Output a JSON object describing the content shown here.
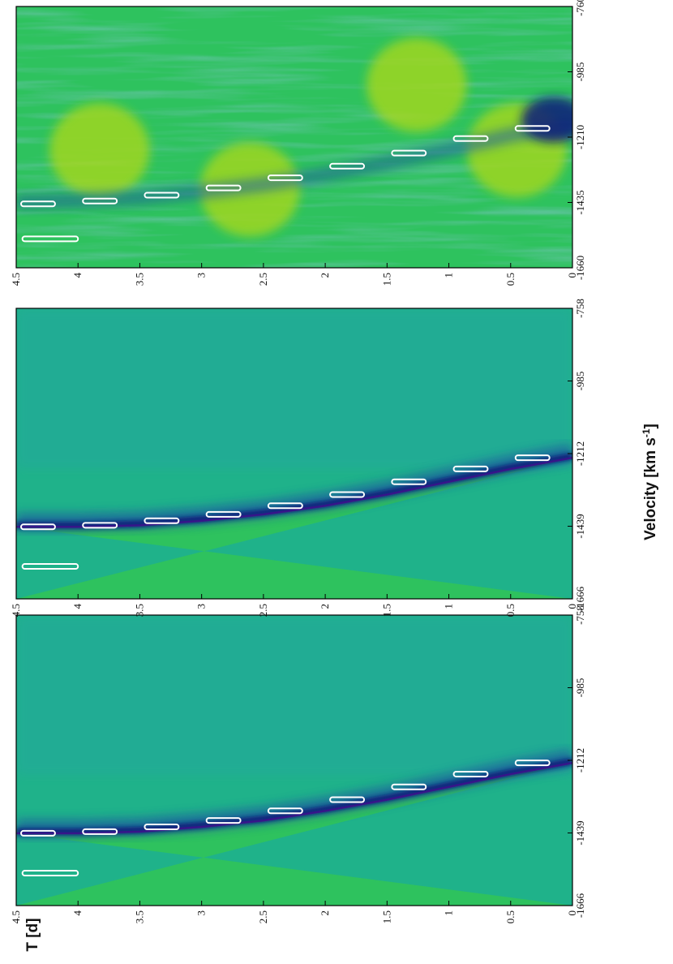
{
  "chart_data": {
    "type": "heatmap",
    "orientation": "rotated 90 degrees counter-clockwise",
    "shared_axis_titles": {
      "time_axis": "T [d]",
      "velocity_axis": "Velocity [km s-1]",
      "velocity_axis_unit_base": "Velocity [km s",
      "velocity_axis_unit_exponent": "-1",
      "velocity_axis_close": "]"
    },
    "colors": {
      "light": "#a6d81c",
      "mid_green": "#2ec25e",
      "teal": "#1fb28a",
      "cyan": "#27a3a8",
      "blue": "#1b5f9e",
      "navy": "#101e7a",
      "purple": "#400e8c",
      "contour": "#ffffff"
    },
    "panels": [
      {
        "name": "panel-1",
        "time_range": [
          0,
          4.5
        ],
        "time_ticks": [
          "0",
          "0.5",
          "1",
          "1.5",
          "2",
          "2.5",
          "3",
          "3.5",
          "4",
          "4.5"
        ],
        "velocity_range": [
          -1666,
          -758
        ],
        "velocity_ticks": [
          "-1666",
          "-1439",
          "-1212",
          "-985",
          "-758"
        ],
        "background": "teal",
        "absorption_trough": [
          {
            "t": 0.0,
            "v": -1220
          },
          {
            "t": 0.5,
            "v": -1255
          },
          {
            "t": 1.0,
            "v": -1295
          },
          {
            "t": 1.5,
            "v": -1335
          },
          {
            "t": 2.0,
            "v": -1370
          },
          {
            "t": 2.5,
            "v": -1400
          },
          {
            "t": 3.0,
            "v": -1420
          },
          {
            "t": 3.5,
            "v": -1435
          },
          {
            "t": 4.0,
            "v": -1440
          },
          {
            "t": 4.5,
            "v": -1440
          }
        ]
      },
      {
        "name": "panel-2",
        "time_range": [
          0,
          4.5
        ],
        "time_ticks": [
          "0",
          "0.5",
          "1",
          "1.5",
          "2",
          "2.5",
          "3",
          "3.5",
          "4",
          "4.5"
        ],
        "velocity_range": [
          -1666,
          -758
        ],
        "velocity_ticks": [
          "-1666",
          "-1439",
          "-1212",
          "-985",
          "-758"
        ],
        "background": "teal",
        "absorption_trough": [
          {
            "t": 0.0,
            "v": -1225
          },
          {
            "t": 0.5,
            "v": -1260
          },
          {
            "t": 1.0,
            "v": -1300
          },
          {
            "t": 1.5,
            "v": -1340
          },
          {
            "t": 2.0,
            "v": -1375
          },
          {
            "t": 2.5,
            "v": -1402
          },
          {
            "t": 3.0,
            "v": -1422
          },
          {
            "t": 3.5,
            "v": -1436
          },
          {
            "t": 4.0,
            "v": -1441
          },
          {
            "t": 4.5,
            "v": -1441
          }
        ]
      },
      {
        "name": "panel-3",
        "time_range": [
          0,
          4.5
        ],
        "time_ticks": [
          "0",
          "0.5",
          "1",
          "1.5",
          "2",
          "2.5",
          "3",
          "3.5",
          "4",
          "4.5"
        ],
        "velocity_range": [
          -1660,
          -760
        ],
        "velocity_ticks": [
          "-1660",
          "-1435",
          "-1210",
          "-985",
          "-760"
        ],
        "background": "light",
        "absorption_trough": [
          {
            "t": 0.0,
            "v": -1180
          },
          {
            "t": 0.5,
            "v": -1215
          },
          {
            "t": 1.0,
            "v": -1265
          },
          {
            "t": 1.5,
            "v": -1310
          },
          {
            "t": 2.0,
            "v": -1350
          },
          {
            "t": 2.5,
            "v": -1385
          },
          {
            "t": 3.0,
            "v": -1410
          },
          {
            "t": 3.5,
            "v": -1430
          },
          {
            "t": 4.0,
            "v": -1440
          },
          {
            "t": 4.5,
            "v": -1445
          }
        ]
      }
    ]
  }
}
